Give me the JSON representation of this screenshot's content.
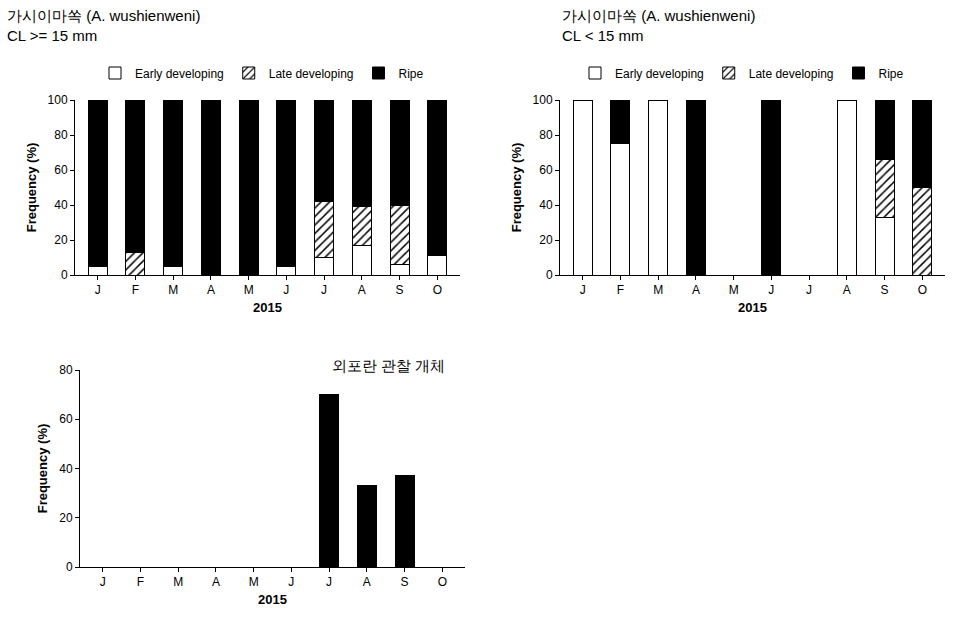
{
  "chart_data": [
    {
      "type": "bar",
      "title": "가시이마쏙 (A. wushienweni)",
      "subtitle": "CL >= 15 mm",
      "categories": [
        "J",
        "F",
        "M",
        "A",
        "M",
        "J",
        "J",
        "A",
        "S",
        "O"
      ],
      "xlabel": "2015",
      "ylabel": "Frequency (%)",
      "ylim": [
        0,
        100
      ],
      "yticks": [
        0,
        20,
        40,
        60,
        80,
        100
      ],
      "stacked": true,
      "legend": "top",
      "series": [
        {
          "name": "Early developing",
          "color": "#ffffff",
          "marker": "solid",
          "values": [
            5,
            0,
            5,
            0,
            0,
            5,
            10,
            17,
            6,
            11
          ]
        },
        {
          "name": "Late developing",
          "color": "#ffffff",
          "marker": "hatched",
          "values": [
            0,
            13,
            0,
            0,
            0,
            0,
            32,
            22,
            34,
            0
          ]
        },
        {
          "name": "Ripe",
          "color": "#000000",
          "marker": "solid",
          "values": [
            95,
            87,
            95,
            100,
            100,
            95,
            58,
            61,
            60,
            89
          ]
        }
      ]
    },
    {
      "type": "bar",
      "title": "가시이마쏙 (A. wushienweni)",
      "subtitle": "CL < 15 mm",
      "categories": [
        "J",
        "F",
        "M",
        "A",
        "M",
        "J",
        "J",
        "A",
        "S",
        "O"
      ],
      "xlabel": "2015",
      "ylabel": "Frequency (%)",
      "ylim": [
        0,
        100
      ],
      "yticks": [
        0,
        20,
        40,
        60,
        80,
        100
      ],
      "stacked": true,
      "legend": "top",
      "series": [
        {
          "name": "Early developing",
          "color": "#ffffff",
          "marker": "solid",
          "values": [
            100,
            75,
            100,
            0,
            null,
            0,
            null,
            100,
            33,
            0
          ]
        },
        {
          "name": "Late developing",
          "color": "#ffffff",
          "marker": "hatched",
          "values": [
            0,
            0,
            0,
            0,
            null,
            0,
            null,
            0,
            33,
            50
          ]
        },
        {
          "name": "Ripe",
          "color": "#000000",
          "marker": "solid",
          "values": [
            0,
            25,
            0,
            100,
            null,
            100,
            null,
            0,
            34,
            50
          ]
        }
      ]
    },
    {
      "type": "bar",
      "title": "외포란 관찰 개체",
      "categories": [
        "J",
        "F",
        "M",
        "A",
        "M",
        "J",
        "J",
        "A",
        "S",
        "O"
      ],
      "xlabel": "2015",
      "ylabel": "Frequency (%)",
      "ylim": [
        0,
        80
      ],
      "yticks": [
        0,
        20,
        40,
        60,
        80
      ],
      "color": "#000000",
      "values": [
        0,
        0,
        0,
        0,
        0,
        0,
        70,
        33,
        37,
        0
      ]
    }
  ]
}
